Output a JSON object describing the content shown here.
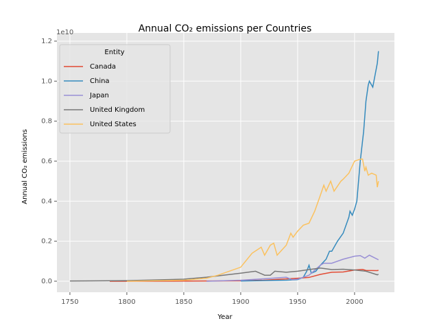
{
  "chart_data": {
    "type": "line",
    "title": "Annual CO₂ emissions per Countries",
    "xlabel": "Year",
    "ylabel": "Annual CO₂ emissions",
    "y_offset_label": "1e10",
    "legend_title": "Entity",
    "legend_loc": "upper-left",
    "grid": true,
    "xlim": [
      1738.6,
      2035
    ],
    "ylim": [
      -0.055,
      1.241
    ],
    "xticks": [
      1750,
      1800,
      1850,
      1900,
      1950,
      2000
    ],
    "yticks": [
      {
        "value": 0,
        "label": "0.0"
      },
      0.2,
      0.4,
      0.6,
      0.8,
      {
        "value": 1,
        "label": "1.0"
      },
      1.2
    ],
    "series": [
      {
        "name": "Canada",
        "color": "#E24A33",
        "x": [
          1785,
          1850,
          1900,
          1920,
          1950,
          1960,
          1970,
          1980,
          1990,
          2000,
          2007,
          2010,
          2020,
          2021
        ],
        "values": [
          0,
          0.0005,
          0.002,
          0.005,
          0.015,
          0.019,
          0.034,
          0.045,
          0.046,
          0.056,
          0.059,
          0.054,
          0.053,
          0.055
        ]
      },
      {
        "name": "China",
        "color": "#348ABD",
        "x": [
          1900,
          1940,
          1950,
          1955,
          1958,
          1960,
          1962,
          1966,
          1970,
          1975,
          1978,
          1980,
          1985,
          1990,
          1995,
          1996,
          1998,
          2000,
          2002,
          2005,
          2008,
          2010,
          2012,
          2013,
          2015,
          2016,
          2018,
          2020,
          2021
        ],
        "values": [
          0.001,
          0.005,
          0.008,
          0.02,
          0.05,
          0.08,
          0.04,
          0.05,
          0.08,
          0.11,
          0.15,
          0.15,
          0.2,
          0.24,
          0.32,
          0.35,
          0.33,
          0.36,
          0.4,
          0.6,
          0.75,
          0.9,
          0.98,
          1.0,
          0.98,
          0.97,
          1.03,
          1.09,
          1.15
        ]
      },
      {
        "name": "Japan",
        "color": "#988ED5",
        "x": [
          1870,
          1900,
          1920,
          1940,
          1945,
          1950,
          1960,
          1970,
          1973,
          1980,
          1990,
          2000,
          2005,
          2009,
          2013,
          2020,
          2021
        ],
        "values": [
          0,
          0.005,
          0.012,
          0.02,
          0.008,
          0.01,
          0.03,
          0.08,
          0.09,
          0.09,
          0.11,
          0.125,
          0.128,
          0.115,
          0.13,
          0.11,
          0.107
        ]
      },
      {
        "name": "United Kingdom",
        "color": "#777777",
        "x": [
          1750,
          1800,
          1850,
          1870,
          1900,
          1913,
          1921,
          1926,
          1929,
          1930,
          1940,
          1950,
          1960,
          1970,
          1980,
          1990,
          2000,
          2010,
          2020,
          2021
        ],
        "values": [
          0.001,
          0.003,
          0.01,
          0.02,
          0.04,
          0.05,
          0.03,
          0.03,
          0.045,
          0.05,
          0.045,
          0.05,
          0.058,
          0.066,
          0.058,
          0.06,
          0.056,
          0.05,
          0.032,
          0.035
        ]
      },
      {
        "name": "United States",
        "color": "#FBC15E",
        "x": [
          1800,
          1850,
          1870,
          1880,
          1900,
          1910,
          1918,
          1921,
          1926,
          1929,
          1932,
          1940,
          1944,
          1946,
          1950,
          1955,
          1960,
          1965,
          1970,
          1973,
          1975,
          1979,
          1982,
          1988,
          1990,
          1995,
          2000,
          2005,
          2007,
          2009,
          2010,
          2012,
          2015,
          2019,
          2020,
          2021
        ],
        "values": [
          0,
          0.005,
          0.015,
          0.03,
          0.07,
          0.14,
          0.17,
          0.13,
          0.18,
          0.19,
          0.13,
          0.18,
          0.24,
          0.22,
          0.25,
          0.28,
          0.29,
          0.35,
          0.43,
          0.48,
          0.45,
          0.5,
          0.45,
          0.5,
          0.51,
          0.54,
          0.6,
          0.61,
          0.61,
          0.55,
          0.57,
          0.53,
          0.54,
          0.53,
          0.47,
          0.5
        ]
      }
    ]
  }
}
